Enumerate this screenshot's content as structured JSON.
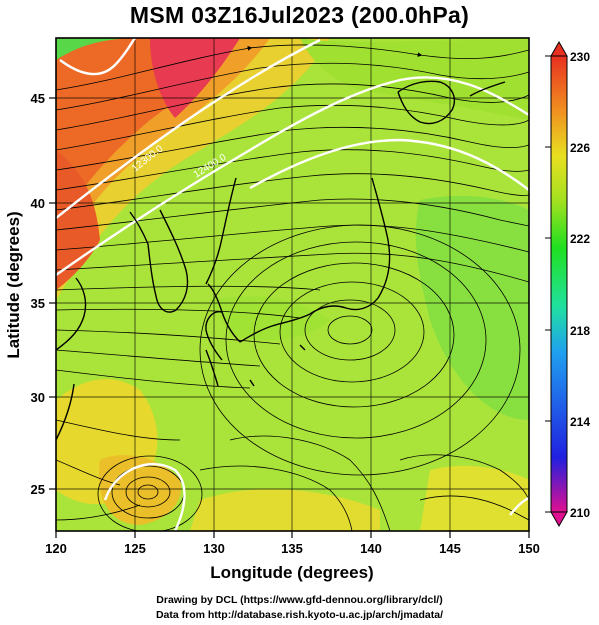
{
  "title": "MSM 03Z16Jul2023 (200.0hPa)",
  "axes": {
    "xlabel": "Longitude (degrees)",
    "ylabel": "Latitude  (degrees)",
    "xlim": [
      120,
      150
    ],
    "ylim": [
      22.4,
      47.6
    ],
    "xticks": [
      "120",
      "125",
      "130",
      "135",
      "140",
      "145",
      "150"
    ],
    "yticks": [
      "25",
      "30",
      "35",
      "40",
      "45"
    ]
  },
  "colorbar": {
    "min": 210,
    "max": 230,
    "ticks": [
      "230",
      "226",
      "222",
      "218",
      "214",
      "210"
    ],
    "colors": [
      "#e01090",
      "#2020e0",
      "#20a0f0",
      "#20e0a0",
      "#20e020",
      "#a0e020",
      "#e8e020",
      "#f09020",
      "#e83020"
    ]
  },
  "contours": {
    "labels": [
      "12300.0",
      "12400.0"
    ]
  },
  "credits": {
    "line1": "Drawing by DCL (https://www.gfd-dennou.org/library/dcl/)",
    "line2": "Data from http://database.rish.kyoto-u.ac.jp/arch/jmadata/"
  }
}
